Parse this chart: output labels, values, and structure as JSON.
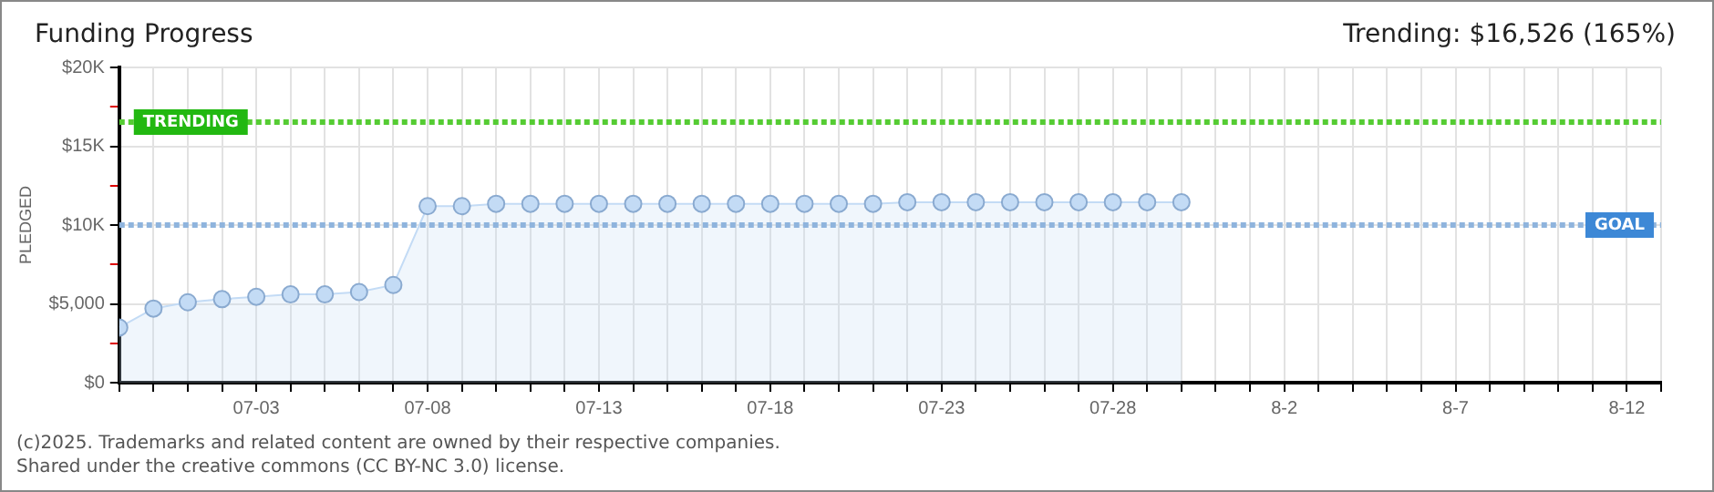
{
  "chart_data": {
    "type": "area",
    "title": "Funding Progress",
    "subtitle": "Trending: $16,526 (165%)",
    "ylabel": "PLEDGED",
    "x": [
      "--06-29",
      "--06-30",
      "--07-01",
      "--07-02",
      "--07-03",
      "--07-04",
      "--07-05",
      "--07-06",
      "--07-07",
      "--07-08",
      "--07-09",
      "--07-10",
      "--07-11",
      "--07-12",
      "--07-13",
      "--07-14",
      "--07-15",
      "--07-16",
      "--07-17",
      "--07-18",
      "--07-19",
      "--07-20",
      "--07-21",
      "--07-22",
      "--07-23",
      "--07-24",
      "--07-25",
      "--07-26",
      "--07-27",
      "--07-28",
      "--07-29",
      "--07-30"
    ],
    "series": [
      {
        "color": "#c3dbf5",
        "values": [
          3500,
          4700,
          5100,
          5300,
          5450,
          5600,
          5600,
          5750,
          6200,
          11200,
          11200,
          11350,
          11350,
          11350,
          11350,
          11350,
          11350,
          11350,
          11350,
          11350,
          11350,
          11350,
          11350,
          11450,
          11450,
          11450,
          11450,
          11450,
          11450,
          11450,
          11450,
          11450
        ]
      }
    ],
    "xlim": [
      "--06-29",
      "--08-13"
    ],
    "xticks": [
      {
        "value": "--06-29",
        "label": null
      },
      {
        "value": "--06-30",
        "label": null
      },
      {
        "value": "--07-01",
        "label": null
      },
      {
        "value": "--07-02",
        "label": null
      },
      {
        "value": "--07-03",
        "label": "07-03"
      },
      {
        "value": "--07-04",
        "label": null
      },
      {
        "value": "--07-05",
        "label": null
      },
      {
        "value": "--07-06",
        "label": null
      },
      {
        "value": "--07-07",
        "label": null
      },
      {
        "value": "--07-08",
        "label": "07-08"
      },
      {
        "value": "--07-09",
        "label": null
      },
      {
        "value": "--07-10",
        "label": null
      },
      {
        "value": "--07-11",
        "label": null
      },
      {
        "value": "--07-12",
        "label": null
      },
      {
        "value": "--07-13",
        "label": "07-13"
      },
      {
        "value": "--07-14",
        "label": null
      },
      {
        "value": "--07-15",
        "label": null
      },
      {
        "value": "--07-16",
        "label": null
      },
      {
        "value": "--07-17",
        "label": null
      },
      {
        "value": "--07-18",
        "label": "07-18"
      },
      {
        "value": "--07-19",
        "label": null
      },
      {
        "value": "--07-20",
        "label": null
      },
      {
        "value": "--07-21",
        "label": null
      },
      {
        "value": "--07-22",
        "label": null
      },
      {
        "value": "--07-23",
        "label": "07-23"
      },
      {
        "value": "--07-24",
        "label": null
      },
      {
        "value": "--07-25",
        "label": null
      },
      {
        "value": "--07-26",
        "label": null
      },
      {
        "value": "--07-27",
        "label": null
      },
      {
        "value": "--07-28",
        "label": "07-28"
      },
      {
        "value": "--07-29",
        "label": null
      },
      {
        "value": "--07-30",
        "label": null
      },
      {
        "value": "--07-31",
        "label": null
      },
      {
        "value": "--08-01",
        "label": null
      },
      {
        "value": "--08-02",
        "label": "8-2"
      },
      {
        "value": "--08-03",
        "label": null
      },
      {
        "value": "--08-04",
        "label": null
      },
      {
        "value": "--08-05",
        "label": null
      },
      {
        "value": "--08-06",
        "label": null
      },
      {
        "value": "--08-07",
        "label": "8-7"
      },
      {
        "value": "--08-08",
        "label": null
      },
      {
        "value": "--08-09",
        "label": null
      },
      {
        "value": "--08-10",
        "label": null
      },
      {
        "value": "--08-11",
        "label": null
      },
      {
        "value": "--08-12",
        "label": "8-12"
      },
      {
        "value": "--08-13",
        "label": null
      }
    ],
    "ylim": [
      0,
      20000
    ],
    "yticks": [
      {
        "value": 0,
        "label": "$0"
      },
      {
        "value": 2500,
        "label": null
      },
      {
        "value": 5000,
        "label": "$5,000"
      },
      {
        "value": 7500,
        "label": null
      },
      {
        "value": 10000,
        "label": "$10K"
      },
      {
        "value": 12500,
        "label": null
      },
      {
        "value": 15000,
        "label": "$15K"
      },
      {
        "value": 17500,
        "label": null
      },
      {
        "value": 20000,
        "label": "$20K"
      }
    ],
    "ref_lines": [
      {
        "axis": "y",
        "value": 16526,
        "label": "TRENDING",
        "color": "#55cc33",
        "line_style": "dotted"
      },
      {
        "axis": "y",
        "value": 10000,
        "label": "GOAL",
        "color": "#8fb4dd",
        "line_style": "dotted"
      }
    ],
    "grid": true,
    "marker": "circle",
    "legend": false,
    "annotations": [
      "(c)2025. Trademarks and related content are owned by their respective companies.",
      "Shared under the creative commons (CC BY-NC 3.0) license."
    ]
  }
}
